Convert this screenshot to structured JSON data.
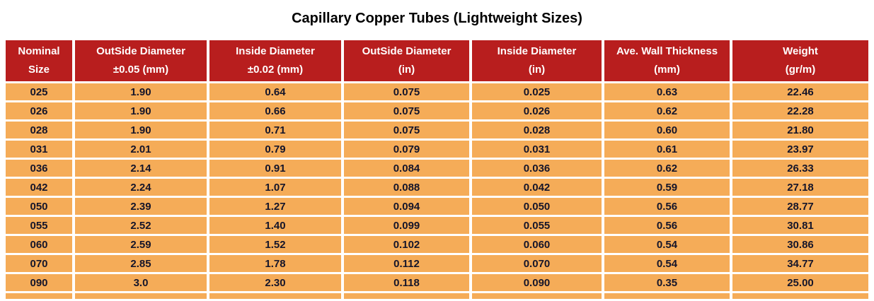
{
  "colors": {
    "header_bg": "#B81E1E",
    "row_bg": "#F5AC58",
    "header_text": "#FFFFFF",
    "cell_text": "#15152A",
    "title_text": "#000000",
    "gap": "#FFFFFF"
  },
  "chart_data": {
    "type": "table",
    "title": "Capillary Copper Tubes (Lightweight Sizes)",
    "columns": [
      {
        "line1": "Nominal",
        "line2": "Size"
      },
      {
        "line1": "OutSide Diameter",
        "line2": "±0.05 (mm)"
      },
      {
        "line1": "Inside Diameter",
        "line2": "±0.02 (mm)"
      },
      {
        "line1": "OutSide Diameter",
        "line2": "(in)"
      },
      {
        "line1": "Inside Diameter",
        "line2": "(in)"
      },
      {
        "line1": "Ave. Wall Thickness",
        "line2": "(mm)"
      },
      {
        "line1": "Weight",
        "line2": "(gr/m)"
      }
    ],
    "rows": [
      [
        "025",
        "1.90",
        "0.64",
        "0.075",
        "0.025",
        "0.63",
        "22.46"
      ],
      [
        "026",
        "1.90",
        "0.66",
        "0.075",
        "0.026",
        "0.62",
        "22.28"
      ],
      [
        "028",
        "1.90",
        "0.71",
        "0.075",
        "0.028",
        "0.60",
        "21.80"
      ],
      [
        "031",
        "2.01",
        "0.79",
        "0.079",
        "0.031",
        "0.61",
        "23.97"
      ],
      [
        "036",
        "2.14",
        "0.91",
        "0.084",
        "0.036",
        "0.62",
        "26.33"
      ],
      [
        "042",
        "2.24",
        "1.07",
        "0.088",
        "0.042",
        "0.59",
        "27.18"
      ],
      [
        "050",
        "2.39",
        "1.27",
        "0.094",
        "0.050",
        "0.56",
        "28.77"
      ],
      [
        "055",
        "2.52",
        "1.40",
        "0.099",
        "0.055",
        "0.56",
        "30.81"
      ],
      [
        "060",
        "2.59",
        "1.52",
        "0.102",
        "0.060",
        "0.54",
        "30.86"
      ],
      [
        "070",
        "2.85",
        "1.78",
        "0.112",
        "0.070",
        "0.54",
        "34.77"
      ],
      [
        "090",
        "3.0",
        "2.30",
        "0.118",
        "0.090",
        "0.35",
        "25.00"
      ]
    ]
  }
}
